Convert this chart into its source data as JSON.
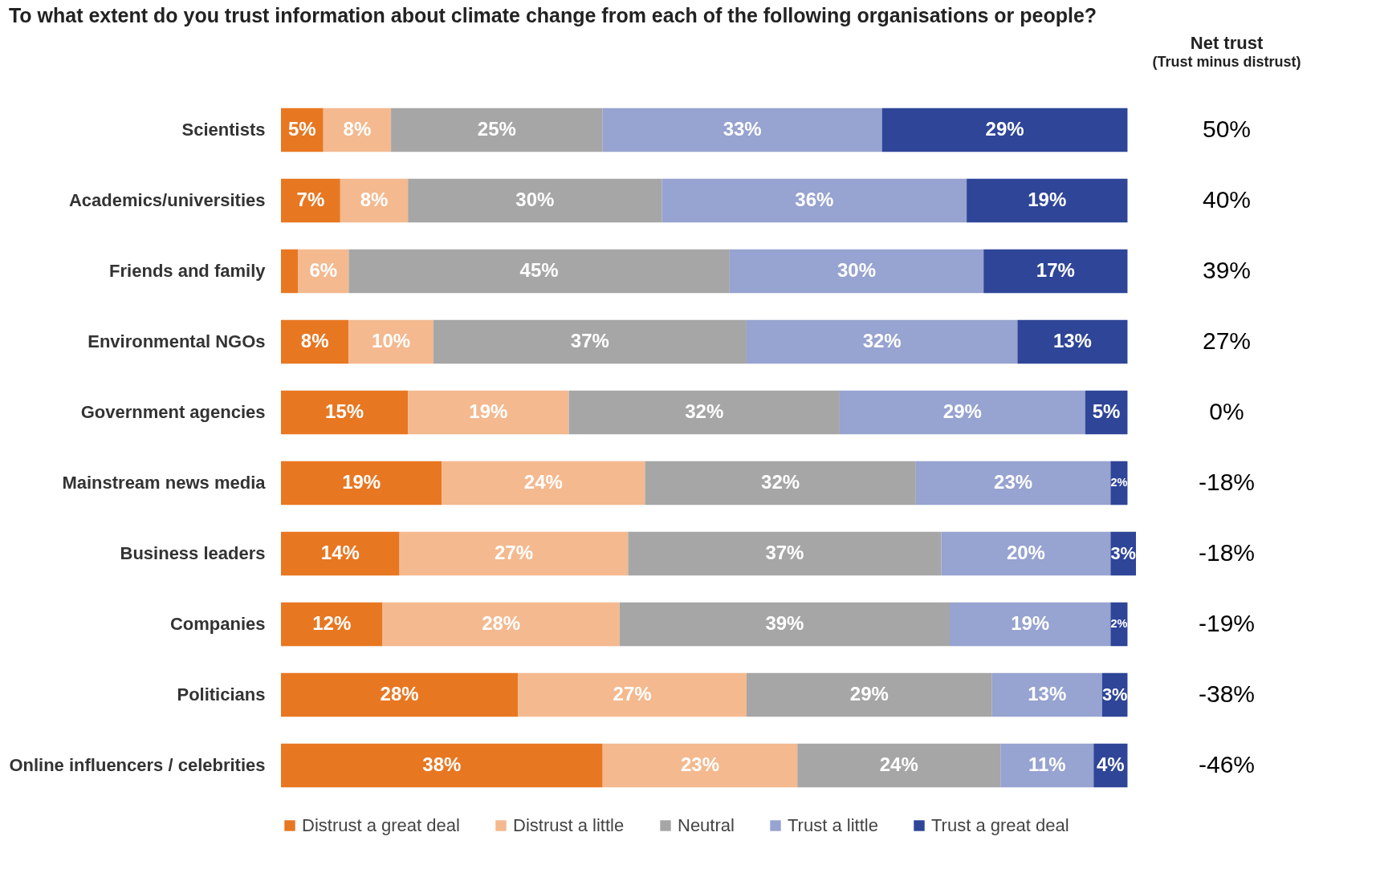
{
  "chart_data": {
    "type": "bar",
    "orientation": "horizontal",
    "stacked": true,
    "title": "To what extent do you trust information about climate change from each of the following organisations or people?",
    "categories": [
      "Scientists",
      "Academics/universities",
      "Friends and family",
      "Environmental NGOs",
      "Government agencies",
      "Mainstream news media",
      "Business leaders",
      "Companies",
      "Politicians",
      "Online influencers / celebrities"
    ],
    "series": [
      {
        "name": "Distrust a great deal",
        "color": "#e87722",
        "values": [
          5,
          7,
          2,
          8,
          15,
          19,
          14,
          12,
          28,
          38
        ],
        "value_labels": [
          "5%",
          "7%",
          null,
          "8%",
          "15%",
          "19%",
          "14%",
          "12%",
          "28%",
          "38%"
        ]
      },
      {
        "name": "Distrust a little",
        "color": "#f4b98f",
        "values": [
          8,
          8,
          6,
          10,
          19,
          24,
          27,
          28,
          27,
          23
        ],
        "value_labels": [
          "8%",
          "8%",
          "6%",
          "10%",
          "19%",
          "24%",
          "27%",
          "28%",
          "27%",
          "23%"
        ]
      },
      {
        "name": "Neutral",
        "color": "#a6a6a6",
        "values": [
          25,
          30,
          45,
          37,
          32,
          32,
          37,
          39,
          29,
          24
        ],
        "value_labels": [
          "25%",
          "30%",
          "45%",
          "37%",
          "32%",
          "32%",
          "37%",
          "39%",
          "29%",
          "24%"
        ]
      },
      {
        "name": "Trust a little",
        "color": "#97a3d0",
        "values": [
          33,
          36,
          30,
          32,
          29,
          23,
          20,
          19,
          13,
          11
        ],
        "value_labels": [
          "33%",
          "36%",
          "30%",
          "32%",
          "29%",
          "23%",
          "20%",
          "19%",
          "13%",
          "11%"
        ]
      },
      {
        "name": "Trust a great deal",
        "color": "#2e4598",
        "values": [
          29,
          19,
          17,
          13,
          5,
          2,
          3,
          2,
          3,
          4
        ],
        "value_labels": [
          "29%",
          "19%",
          "17%",
          "13%",
          "5%",
          "2%",
          "3%",
          "2%",
          "3%",
          "4%"
        ]
      }
    ],
    "annotations": [
      "Net trust",
      "(Trust minus distrust)",
      "50%",
      "40%",
      "39%",
      "27%",
      "0%",
      "-18%",
      "-18%",
      "-19%",
      "-38%",
      "-46%"
    ],
    "legend": "bottom",
    "tick_labels": "y"
  }
}
